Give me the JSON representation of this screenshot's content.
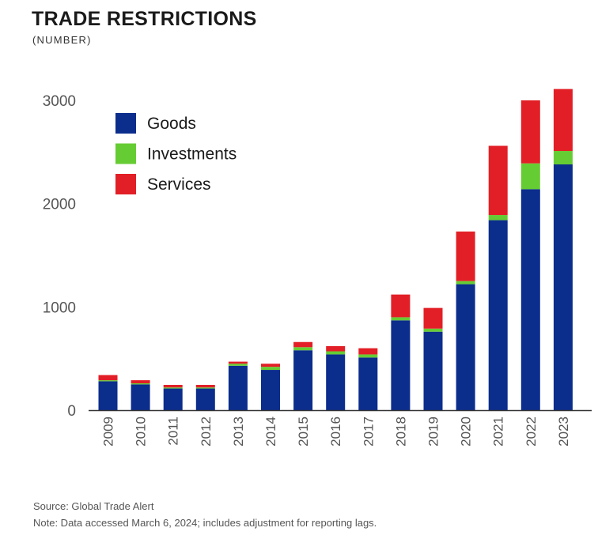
{
  "header": {
    "title": "TRADE RESTRICTIONS",
    "subtitle": "(NUMBER)"
  },
  "footer": {
    "source": "Source: Global Trade Alert",
    "note": "Note: Data accessed March 6, 2024; includes adjustment for reporting lags."
  },
  "colors": {
    "Goods": "#0b2d8c",
    "Investments": "#66cc33",
    "Services": "#e21f26",
    "axis_text": "#555555",
    "axis_line": "#333333"
  },
  "chart_data": {
    "type": "bar",
    "stacked": true,
    "title": "TRADE RESTRICTIONS",
    "subtitle": "(NUMBER)",
    "categories": [
      "2009",
      "2010",
      "2011",
      "2012",
      "2013",
      "2014",
      "2015",
      "2016",
      "2017",
      "2018",
      "2019",
      "2020",
      "2021",
      "2022",
      "2023"
    ],
    "series": [
      {
        "name": "Goods",
        "values": [
          280,
          250,
          210,
          210,
          430,
          390,
          580,
          540,
          510,
          870,
          760,
          1220,
          1840,
          2140,
          2380
        ]
      },
      {
        "name": "Investments",
        "values": [
          10,
          10,
          10,
          10,
          20,
          30,
          30,
          30,
          30,
          30,
          30,
          30,
          50,
          250,
          130
        ]
      },
      {
        "name": "Services",
        "values": [
          50,
          30,
          25,
          25,
          20,
          30,
          50,
          50,
          60,
          220,
          200,
          480,
          670,
          610,
          600
        ]
      }
    ],
    "yticks": [
      0,
      1000,
      2000,
      3000
    ],
    "ylim": [
      0,
      3100
    ],
    "legend_position": "top-left",
    "grid": false
  }
}
